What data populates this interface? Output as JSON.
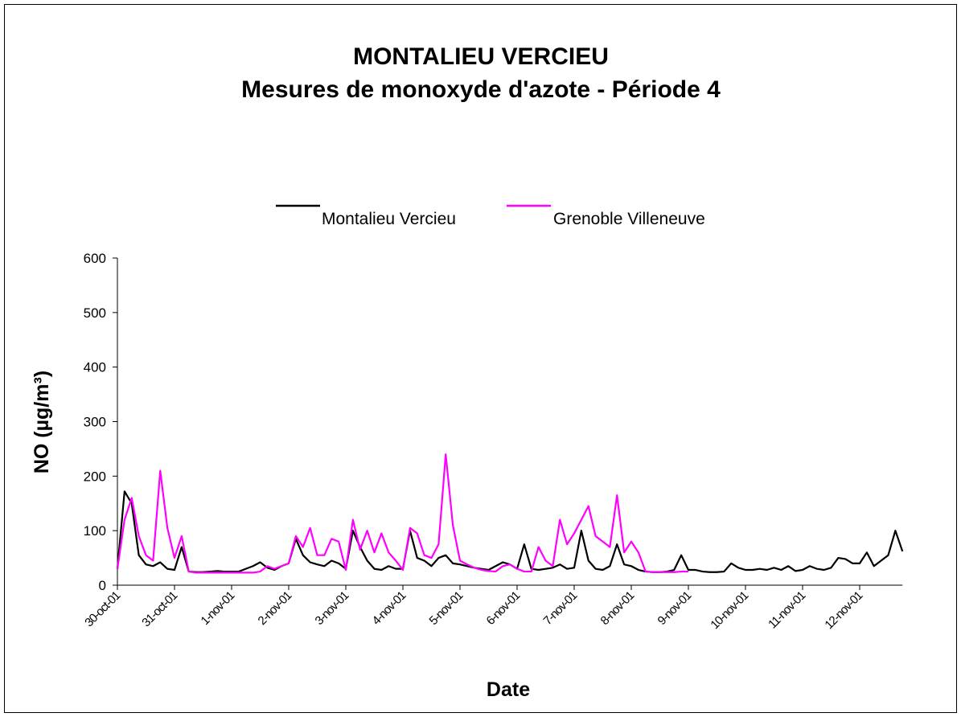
{
  "chart_data": {
    "type": "line",
    "title": "MONTALIEU VERCIEU",
    "subtitle": "Mesures de monoxyde d'azote - Période 4",
    "x_label": "Date",
    "y_label": "NO (µg/m³)",
    "legend": "top",
    "categories": [
      "30-oct-01",
      null,
      null,
      null,
      null,
      null,
      null,
      null,
      "31-oct-01",
      null,
      null,
      null,
      null,
      null,
      null,
      null,
      "1-nov-01",
      null,
      null,
      null,
      null,
      null,
      null,
      null,
      "2-nov-01",
      null,
      null,
      null,
      null,
      null,
      null,
      null,
      "3-nov-01",
      null,
      null,
      null,
      null,
      null,
      null,
      null,
      "4-nov-01",
      null,
      null,
      null,
      null,
      null,
      null,
      null,
      "5-nov-01",
      null,
      null,
      null,
      null,
      null,
      null,
      null,
      "6-nov-01",
      null,
      null,
      null,
      null,
      null,
      null,
      null,
      "7-nov-01",
      null,
      null,
      null,
      null,
      null,
      null,
      null,
      "8-nov-01",
      null,
      null,
      null,
      null,
      null,
      null,
      null,
      "9-nov-01",
      null,
      null,
      null,
      null,
      null,
      null,
      null,
      "10-nov-01",
      null,
      null,
      null,
      null,
      null,
      null,
      null,
      "11-nov-01",
      null,
      null,
      null,
      null,
      null,
      null,
      null,
      "12-nov-01",
      null,
      null,
      null,
      null,
      null,
      null
    ],
    "series": [
      {
        "name": "Montalieu Vercieu",
        "color": "#000000",
        "values": [
          30,
          172,
          150,
          55,
          38,
          35,
          42,
          30,
          28,
          70,
          25,
          24,
          24,
          25,
          26,
          25,
          25,
          25,
          30,
          35,
          42,
          32,
          28,
          35,
          40,
          85,
          55,
          42,
          38,
          35,
          45,
          40,
          30,
          100,
          70,
          45,
          30,
          28,
          35,
          30,
          30,
          100,
          50,
          45,
          35,
          50,
          55,
          40,
          38,
          35,
          32,
          30,
          28,
          35,
          42,
          38,
          30,
          75,
          30,
          28,
          30,
          32,
          38,
          30,
          32,
          100,
          45,
          30,
          28,
          35,
          75,
          38,
          35,
          28,
          25,
          24,
          24,
          25,
          28,
          55,
          28,
          28,
          25,
          24,
          24,
          25,
          40,
          32,
          28,
          28,
          30,
          28,
          32,
          28,
          35,
          26,
          28,
          35,
          30,
          28,
          32,
          50,
          48,
          40,
          40,
          60,
          35,
          45,
          55,
          100,
          62
        ]
      },
      {
        "name": "Grenoble Villeneuve",
        "color": "#ff00ff",
        "values": [
          30,
          120,
          160,
          90,
          55,
          45,
          210,
          105,
          50,
          90,
          25,
          23,
          23,
          23,
          23,
          23,
          23,
          23,
          23,
          23,
          25,
          35,
          30,
          35,
          40,
          90,
          70,
          105,
          55,
          55,
          85,
          80,
          28,
          120,
          65,
          100,
          60,
          95,
          60,
          45,
          28,
          105,
          95,
          55,
          50,
          75,
          240,
          110,
          45,
          38,
          32,
          28,
          26,
          25,
          35,
          38,
          30,
          25,
          25,
          70,
          45,
          35,
          120,
          75,
          95,
          120,
          145,
          90,
          80,
          70,
          165,
          60,
          80,
          60,
          25,
          24,
          24,
          24,
          24,
          25,
          25,
          null,
          null,
          null,
          null,
          null,
          null,
          null,
          null,
          null,
          null,
          null,
          null,
          null,
          null,
          null,
          null,
          null,
          null,
          null,
          null,
          null,
          null,
          null,
          null,
          null,
          null,
          null,
          null,
          null,
          null
        ]
      }
    ],
    "ylim": [
      0,
      600
    ],
    "yticks": [
      0,
      100,
      200,
      300,
      400,
      500,
      600
    ],
    "grid": false
  }
}
